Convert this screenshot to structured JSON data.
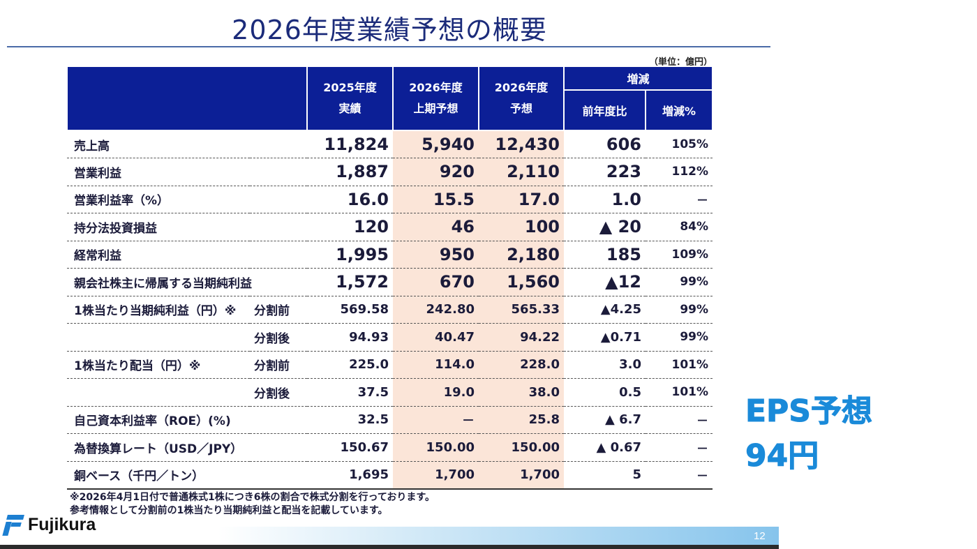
{
  "title": "2026年度業績予想の概要",
  "unit": "（単位：億円）",
  "header": {
    "col_2025_line1": "2025年度",
    "col_2025_line2": "実績",
    "col_2026h_line1": "2026年度",
    "col_2026h_line2": "上期予想",
    "col_2026_line1": "2026年度",
    "col_2026_line2": "予想",
    "change": "増減",
    "change_yoy": "前年度比",
    "change_pct": "増減%"
  },
  "rows": [
    {
      "label": "売上高",
      "sub": "",
      "v2025": "11,824",
      "v2026h": "5,940",
      "v2026": "12,430",
      "yoy": "606",
      "pct": "105%"
    },
    {
      "label": "営業利益",
      "sub": "",
      "v2025": "1,887",
      "v2026h": "920",
      "v2026": "2,110",
      "yoy": "223",
      "pct": "112%"
    },
    {
      "label": "営業利益率（%）",
      "sub": "",
      "v2025": "16.0",
      "v2026h": "15.5",
      "v2026": "17.0",
      "yoy": "1.0",
      "pct": "－"
    },
    {
      "label": "持分法投資損益",
      "sub": "",
      "v2025": "120",
      "v2026h": "46",
      "v2026": "100",
      "yoy": "▲ 20",
      "pct": "84%"
    },
    {
      "label": "経常利益",
      "sub": "",
      "v2025": "1,995",
      "v2026h": "950",
      "v2026": "2,180",
      "yoy": "185",
      "pct": "109%"
    },
    {
      "label": "親会社株主に帰属する当期純利益",
      "sub": "",
      "v2025": "1,572",
      "v2026h": "670",
      "v2026": "1,560",
      "yoy": "▲12",
      "pct": "99%"
    },
    {
      "label": "1株当たり当期純利益（円）※",
      "sub": "分割前",
      "v2025": "569.58",
      "v2026h": "242.80",
      "v2026": "565.33",
      "yoy": "▲4.25",
      "pct": "99%"
    },
    {
      "label": "",
      "sub": "分割後",
      "v2025": "94.93",
      "v2026h": "40.47",
      "v2026": "94.22",
      "yoy": "▲0.71",
      "pct": "99%"
    },
    {
      "label": "1株当たり配当（円）※",
      "sub": "分割前",
      "v2025": "225.0",
      "v2026h": "114.0",
      "v2026": "228.0",
      "yoy": "3.0",
      "pct": "101%"
    },
    {
      "label": "",
      "sub": "分割後",
      "v2025": "37.5",
      "v2026h": "19.0",
      "v2026": "38.0",
      "yoy": "0.5",
      "pct": "101%"
    },
    {
      "label": "自己資本利益率（ROE）(%)",
      "sub": "",
      "v2025": "32.5",
      "v2026h": "－",
      "v2026": "25.8",
      "yoy": "▲ 6.7",
      "pct": "－"
    },
    {
      "label": "為替換算レート（USD／JPY）",
      "sub": "",
      "v2025": "150.67",
      "v2026h": "150.00",
      "v2026": "150.00",
      "yoy": "▲ 0.67",
      "pct": "－"
    },
    {
      "label": "銅ベース（千円／トン）",
      "sub": "",
      "v2025": "1,695",
      "v2026h": "1,700",
      "v2026": "1,700",
      "yoy": "5",
      "pct": "－"
    }
  ],
  "notes": {
    "line1": "※2026年4月1日付で普通株式1株につき6株の割合で株式分割を行っております。",
    "line2": "参考情報として分割前の1株当たり当期純利益と配当を記載しています。"
  },
  "logo_text": "Fujikura",
  "page_number": "12",
  "callout": {
    "line1": "EPS予想",
    "line2": "94円"
  },
  "colors": {
    "header_bg": "#0c1f96",
    "highlight": "#fbe5d8",
    "title": "#1b2b7a",
    "callout": "#1a8ad9"
  }
}
